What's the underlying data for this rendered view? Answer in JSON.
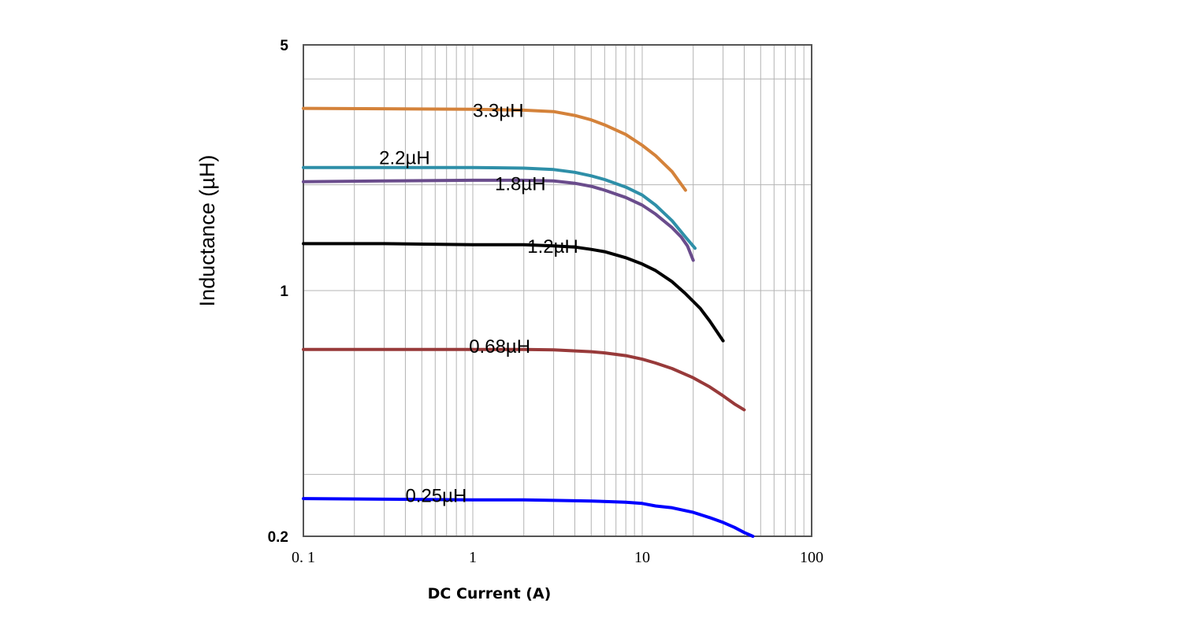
{
  "chart_data": {
    "type": "line",
    "title": "",
    "xlabel": "DC Current (A)",
    "ylabel": "Inductance (µH)",
    "x_scale": "log",
    "y_scale": "log",
    "xlim": [
      0.1,
      100
    ],
    "ylim": [
      0.2,
      5
    ],
    "grid": true,
    "x_ticks": [
      {
        "value": 0.1,
        "label": "0. 1"
      },
      {
        "value": 1,
        "label": "1"
      },
      {
        "value": 10,
        "label": "10"
      },
      {
        "value": 100,
        "label": "100"
      }
    ],
    "y_ticks": [
      {
        "value": 5,
        "label": "5"
      },
      {
        "value": 1,
        "label": "1"
      },
      {
        "value": 0.2,
        "label": "0.2"
      }
    ],
    "series": [
      {
        "name": "3.3µH",
        "color": "#D4823A",
        "x": [
          0.1,
          0.3,
          1,
          2,
          3,
          4,
          5,
          6,
          8,
          10,
          12,
          15,
          18
        ],
        "y": [
          3.3,
          3.29,
          3.28,
          3.26,
          3.23,
          3.15,
          3.06,
          2.96,
          2.78,
          2.59,
          2.42,
          2.18,
          1.93
        ]
      },
      {
        "name": "2.2µH",
        "color": "#2E8FA8",
        "x": [
          0.1,
          0.3,
          1,
          2,
          3,
          4,
          5,
          6,
          8,
          10,
          12,
          15,
          18,
          20.5
        ],
        "y": [
          2.24,
          2.24,
          2.24,
          2.23,
          2.21,
          2.17,
          2.12,
          2.07,
          1.97,
          1.87,
          1.75,
          1.58,
          1.42,
          1.32
        ]
      },
      {
        "name": "1.8µH",
        "color": "#6A4C8C",
        "x": [
          0.1,
          0.3,
          1,
          2,
          3,
          4,
          5,
          6,
          8,
          10,
          12,
          15,
          17,
          18.5,
          20
        ],
        "y": [
          2.04,
          2.05,
          2.06,
          2.06,
          2.05,
          2.02,
          1.98,
          1.93,
          1.84,
          1.75,
          1.65,
          1.51,
          1.42,
          1.34,
          1.22
        ]
      },
      {
        "name": "1.2µH",
        "color": "#000000",
        "x": [
          0.1,
          0.3,
          1,
          2,
          3,
          4,
          5,
          6,
          8,
          10,
          12,
          15,
          18,
          22,
          25,
          30
        ],
        "y": [
          1.36,
          1.36,
          1.35,
          1.35,
          1.34,
          1.33,
          1.31,
          1.29,
          1.24,
          1.19,
          1.14,
          1.06,
          0.98,
          0.89,
          0.82,
          0.72
        ]
      },
      {
        "name": "0.68µH",
        "color": "#983A3A",
        "x": [
          0.1,
          0.3,
          1,
          2,
          3,
          5,
          6,
          8,
          10,
          12,
          15,
          20,
          25,
          30,
          35,
          40
        ],
        "y": [
          0.68,
          0.68,
          0.68,
          0.68,
          0.678,
          0.67,
          0.665,
          0.653,
          0.638,
          0.622,
          0.6,
          0.565,
          0.532,
          0.502,
          0.476,
          0.458
        ]
      },
      {
        "name": "0.25µH",
        "color": "#0000FF",
        "x": [
          0.1,
          0.3,
          1,
          2,
          3,
          5,
          8,
          10,
          12,
          15,
          20,
          25,
          30,
          35,
          40,
          45
        ],
        "y": [
          0.256,
          0.255,
          0.254,
          0.254,
          0.253,
          0.252,
          0.25,
          0.248,
          0.244,
          0.241,
          0.234,
          0.226,
          0.219,
          0.212,
          0.205,
          0.2
        ]
      }
    ],
    "annotations": [
      {
        "text": "3.3µH",
        "x": 1.0,
        "y": 3.12,
        "color": "#000000"
      },
      {
        "text": "2.2µH",
        "x": 0.28,
        "y": 2.29,
        "color": "#000000"
      },
      {
        "text": "1.8µH",
        "x": 1.35,
        "y": 1.93,
        "color": "#000000"
      },
      {
        "text": "1.2µH",
        "x": 2.1,
        "y": 1.28,
        "color": "#000000"
      },
      {
        "text": "0.68µH",
        "x": 0.95,
        "y": 0.666,
        "color": "#000000"
      },
      {
        "text": "0.25µH",
        "x": 0.4,
        "y": 0.25,
        "color": "#000000"
      }
    ]
  }
}
